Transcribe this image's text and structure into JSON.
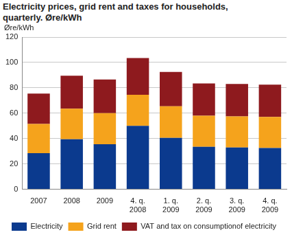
{
  "chart_data": {
    "type": "bar",
    "title": "Electricity prices, grid rent and taxes for households, quarterly. Øre/kWh",
    "y_label": "Øre/kWh",
    "categories": [
      "2007",
      "2008",
      "2009",
      "4. q. 2008",
      "1. q. 2009",
      "2. q. 2009",
      "3. q. 2009",
      "4. q. 2009"
    ],
    "series": [
      {
        "name": "Electricity",
        "color": "#0b3a8e",
        "values": [
          28.5,
          39.5,
          35.5,
          50,
          40.5,
          33.5,
          33,
          32.5
        ]
      },
      {
        "name": "Grid rent",
        "color": "#f5a31c",
        "values": [
          23,
          24,
          24.5,
          24.5,
          25,
          24.5,
          24.5,
          24.5
        ]
      },
      {
        "name": "VAT and tax on consumptionof electricity",
        "color": "#8e1a1e",
        "values": [
          24,
          26,
          26.5,
          29,
          27,
          25.5,
          25.5,
          25.5
        ]
      }
    ],
    "ylim": [
      0,
      120
    ],
    "yticks": [
      0,
      20,
      40,
      60,
      80,
      100,
      120
    ],
    "stacked": true,
    "grid": true,
    "legend": "bottom"
  }
}
